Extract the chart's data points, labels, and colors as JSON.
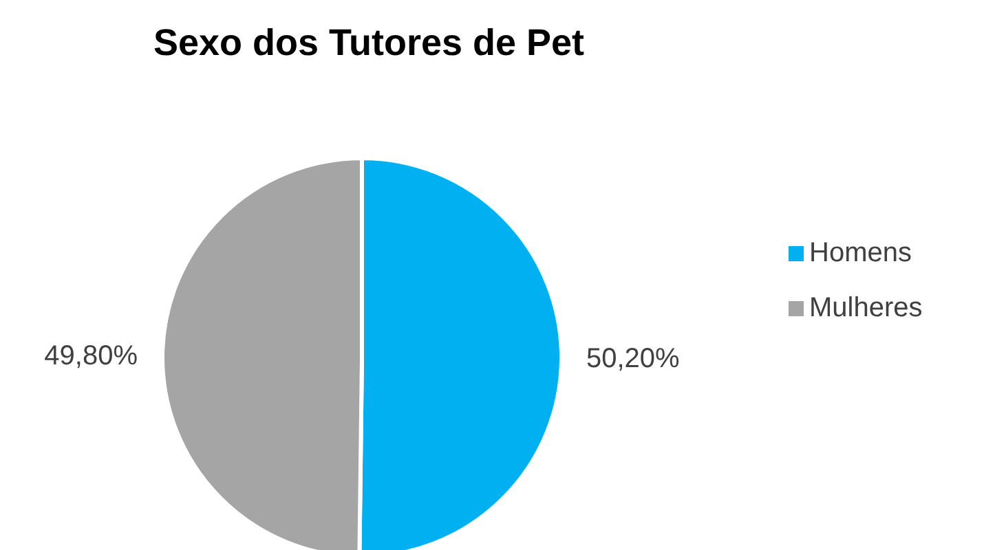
{
  "chart_data": {
    "type": "pie",
    "title": "Sexo dos Tutores de Pet",
    "categories": [
      "Homens",
      "Mulheres"
    ],
    "values": [
      50.2,
      49.8
    ],
    "colors": [
      "#00b0f0",
      "#a5a5a5"
    ],
    "value_labels": [
      "50,20%",
      "49,80%"
    ],
    "legend": "right"
  }
}
